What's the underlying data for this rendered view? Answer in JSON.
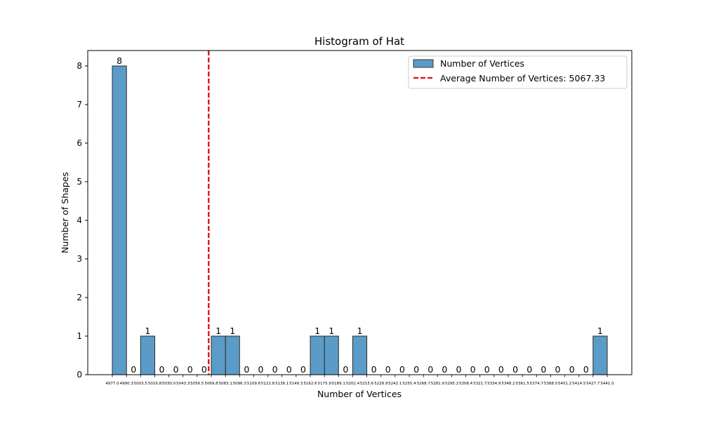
{
  "chart_data": {
    "type": "bar",
    "title": "Histogram of Hat",
    "xlabel": "Number of Vertices",
    "ylabel": "Number of Shapes",
    "ylim": [
      0,
      8.4
    ],
    "yticks": [
      0,
      1,
      2,
      3,
      4,
      5,
      6,
      7,
      8
    ],
    "bin_edges": [
      4977.0,
      4990.3,
      5003.5,
      5016.8,
      5030.0,
      5043.3,
      5056.5,
      5069.8,
      5083.1,
      5096.3,
      5109.6,
      5122.8,
      5136.1,
      5149.3,
      5162.6,
      5175.9,
      5189.1,
      5202.4,
      5215.6,
      5228.9,
      5242.1,
      5255.4,
      5268.7,
      5281.9,
      5295.2,
      5308.4,
      5321.7,
      5334.9,
      5348.2,
      5361.5,
      5374.7,
      5388.0,
      5401.2,
      5414.5,
      5427.7,
      5441.0
    ],
    "xtick_labels": [
      "4977.0",
      "4990.3",
      "5003.5",
      "5016.8",
      "5030.0",
      "5043.3",
      "5056.5",
      "5069.8",
      "5083.1",
      "5096.3",
      "5109.6",
      "5122.8",
      "5136.1",
      "5149.3",
      "5162.6",
      "5175.9",
      "5189.1",
      "5202.4",
      "5215.6",
      "5228.9",
      "5242.1",
      "5255.4",
      "5268.7",
      "5281.9",
      "5295.2",
      "5308.4",
      "5321.7",
      "5334.9",
      "5348.2",
      "5361.5",
      "5374.7",
      "5388.0",
      "5401.2",
      "5414.5",
      "5427.7",
      "5441.0"
    ],
    "series": [
      {
        "name": "Number of Vertices",
        "color": "#5b9bc8",
        "values": [
          8,
          0,
          1,
          0,
          0,
          0,
          0,
          1,
          1,
          0,
          0,
          0,
          0,
          0,
          1,
          1,
          0,
          1,
          0,
          0,
          0,
          0,
          0,
          0,
          0,
          0,
          0,
          0,
          0,
          0,
          0,
          0,
          0,
          0,
          1
        ]
      }
    ],
    "reference_line": {
      "name": "Average Number of Vertices: 5067.33",
      "value": 5067.33,
      "color": "#e41a1c",
      "style": "dashed"
    },
    "legend": {
      "placement": "top-right",
      "entries": [
        "Number of Vertices",
        "Average Number of Vertices: 5067.33"
      ]
    },
    "grid": false
  }
}
